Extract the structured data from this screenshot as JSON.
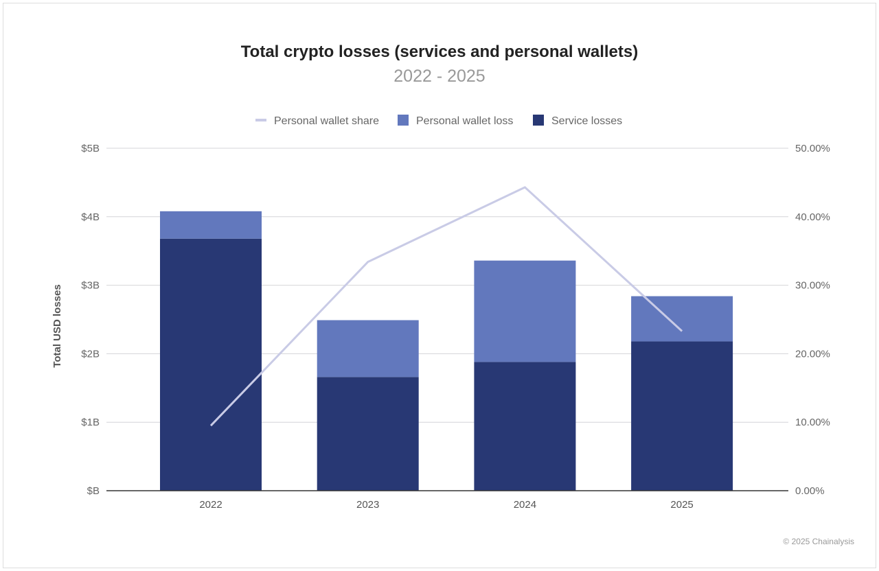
{
  "chart_data": {
    "type": "bar",
    "title": "Total crypto losses (services and personal wallets)",
    "subtitle": "2022 - 2025",
    "ylabel": "Total USD losses",
    "categories": [
      "2022",
      "2023",
      "2024",
      "2025"
    ],
    "series": [
      {
        "name": "Service losses",
        "kind": "bar",
        "axis": "left",
        "color": "#283874",
        "values": [
          3.68,
          1.66,
          1.88,
          2.18
        ]
      },
      {
        "name": "Personal wallet loss",
        "kind": "bar",
        "axis": "left",
        "color": "#6278bd",
        "values": [
          0.4,
          0.83,
          1.48,
          0.66
        ]
      },
      {
        "name": "Personal wallet share",
        "kind": "line",
        "axis": "right",
        "color": "#c9cbe6",
        "values": [
          9.5,
          33.4,
          44.3,
          23.3
        ]
      }
    ],
    "stacked": true,
    "ylim": [
      0,
      5
    ],
    "y2lim": [
      0,
      50
    ],
    "yticks": [
      "$B",
      "$1B",
      "$2B",
      "$3B",
      "$4B",
      "$5B"
    ],
    "y2ticks": [
      "0.00%",
      "10.00%",
      "20.00%",
      "30.00%",
      "40.00%",
      "50.00%"
    ],
    "legend": [
      "Personal wallet share",
      "Personal wallet loss",
      "Service losses"
    ],
    "legend_position": "top",
    "grid": true
  },
  "copyright": "© 2025 Chainalysis"
}
